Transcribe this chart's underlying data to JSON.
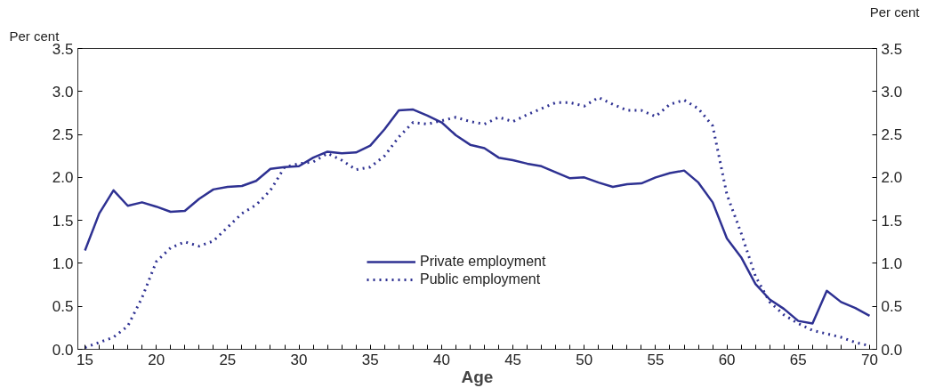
{
  "chart_data": {
    "type": "line",
    "xlabel": "Age",
    "ylabel": "Per cent",
    "y2label": "Per cent",
    "x": [
      15,
      16,
      17,
      18,
      19,
      20,
      21,
      22,
      23,
      24,
      25,
      26,
      27,
      28,
      29,
      30,
      31,
      32,
      33,
      34,
      35,
      36,
      37,
      38,
      39,
      40,
      41,
      42,
      43,
      44,
      45,
      46,
      47,
      48,
      49,
      50,
      51,
      52,
      53,
      54,
      55,
      56,
      57,
      58,
      59,
      60,
      61,
      62,
      63,
      64,
      65,
      66,
      67,
      68,
      69,
      70
    ],
    "series": [
      {
        "name": "Private employment",
        "color": "#2e3192",
        "line_style": "solid",
        "values": [
          1.15,
          1.58,
          1.85,
          1.67,
          1.71,
          1.66,
          1.6,
          1.61,
          1.75,
          1.86,
          1.89,
          1.9,
          1.96,
          2.1,
          2.12,
          2.13,
          2.23,
          2.3,
          2.28,
          2.29,
          2.37,
          2.56,
          2.78,
          2.79,
          2.72,
          2.64,
          2.49,
          2.38,
          2.34,
          2.23,
          2.2,
          2.16,
          2.13,
          2.06,
          1.99,
          2.0,
          1.94,
          1.89,
          1.92,
          1.93,
          2.0,
          2.05,
          2.08,
          1.94,
          1.71,
          1.29,
          1.07,
          0.76,
          0.58,
          0.47,
          0.33,
          0.3,
          0.68,
          0.55,
          0.48,
          0.39
        ]
      },
      {
        "name": "Public employment",
        "color": "#2e3192",
        "line_style": "dotted",
        "values": [
          0.02,
          0.08,
          0.14,
          0.27,
          0.6,
          1.02,
          1.18,
          1.25,
          1.2,
          1.26,
          1.42,
          1.58,
          1.68,
          1.85,
          2.12,
          2.16,
          2.18,
          2.28,
          2.2,
          2.09,
          2.12,
          2.25,
          2.47,
          2.64,
          2.62,
          2.66,
          2.7,
          2.65,
          2.62,
          2.7,
          2.65,
          2.73,
          2.8,
          2.87,
          2.87,
          2.83,
          2.93,
          2.85,
          2.78,
          2.78,
          2.71,
          2.85,
          2.9,
          2.8,
          2.6,
          1.8,
          1.35,
          0.85,
          0.55,
          0.4,
          0.3,
          0.22,
          0.18,
          0.14,
          0.08,
          0.04
        ]
      }
    ],
    "xlim": [
      14.5,
      70.5
    ],
    "xticks": [
      15,
      {
        "value": 16,
        "label": null
      },
      {
        "value": 17,
        "label": null
      },
      {
        "value": 18,
        "label": null
      },
      {
        "value": 19,
        "label": null
      },
      20,
      {
        "value": 21,
        "label": null
      },
      {
        "value": 22,
        "label": null
      },
      {
        "value": 23,
        "label": null
      },
      {
        "value": 24,
        "label": null
      },
      25,
      {
        "value": 26,
        "label": null
      },
      {
        "value": 27,
        "label": null
      },
      {
        "value": 28,
        "label": null
      },
      {
        "value": 29,
        "label": null
      },
      30,
      {
        "value": 31,
        "label": null
      },
      {
        "value": 32,
        "label": null
      },
      {
        "value": 33,
        "label": null
      },
      {
        "value": 34,
        "label": null
      },
      35,
      {
        "value": 36,
        "label": null
      },
      {
        "value": 37,
        "label": null
      },
      {
        "value": 38,
        "label": null
      },
      {
        "value": 39,
        "label": null
      },
      40,
      {
        "value": 41,
        "label": null
      },
      {
        "value": 42,
        "label": null
      },
      {
        "value": 43,
        "label": null
      },
      {
        "value": 44,
        "label": null
      },
      45,
      {
        "value": 46,
        "label": null
      },
      {
        "value": 47,
        "label": null
      },
      {
        "value": 48,
        "label": null
      },
      {
        "value": 49,
        "label": null
      },
      50,
      {
        "value": 51,
        "label": null
      },
      {
        "value": 52,
        "label": null
      },
      {
        "value": 53,
        "label": null
      },
      {
        "value": 54,
        "label": null
      },
      55,
      {
        "value": 56,
        "label": null
      },
      {
        "value": 57,
        "label": null
      },
      {
        "value": 58,
        "label": null
      },
      {
        "value": 59,
        "label": null
      },
      60,
      {
        "value": 61,
        "label": null
      },
      {
        "value": 62,
        "label": null
      },
      {
        "value": 63,
        "label": null
      },
      {
        "value": 64,
        "label": null
      },
      65,
      {
        "value": 66,
        "label": null
      },
      {
        "value": 67,
        "label": null
      },
      {
        "value": 68,
        "label": null
      },
      {
        "value": 69,
        "label": null
      },
      70
    ],
    "ylim": [
      0,
      3.5
    ],
    "yticks": [
      {
        "value": 0,
        "label": "0.0"
      },
      0.5,
      {
        "value": 1,
        "label": "1.0"
      },
      1.5,
      {
        "value": 2,
        "label": "2.0"
      },
      2.5,
      {
        "value": 3,
        "label": "3.0"
      },
      3.5
    ],
    "y2lim": [
      0,
      3.5
    ],
    "y2ticks": [
      {
        "value": 0,
        "label": "0.0"
      },
      0.5,
      {
        "value": 1,
        "label": "1.0"
      },
      1.5,
      {
        "value": 2,
        "label": "2.0"
      },
      2.5,
      {
        "value": 3,
        "label": "3.0"
      },
      3.5
    ],
    "legend": "center",
    "grid": false
  }
}
